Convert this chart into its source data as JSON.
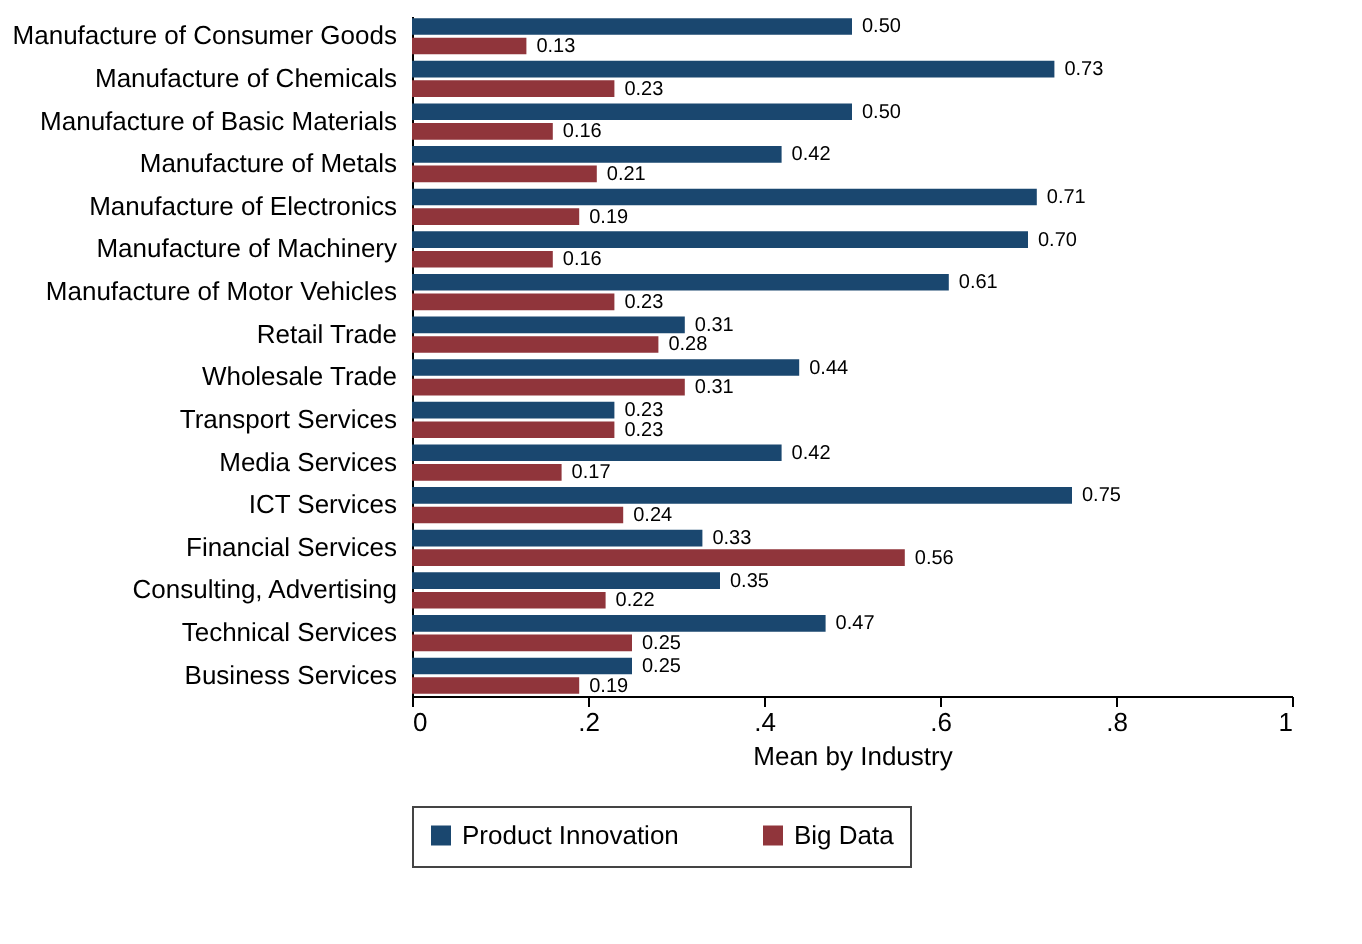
{
  "chart_data": {
    "type": "bar",
    "orientation": "horizontal",
    "xlabel": "Mean by Industry",
    "categories": [
      "Manufacture of Consumer Goods",
      "Manufacture of Chemicals",
      "Manufacture of Basic Materials",
      "Manufacture of Metals",
      "Manufacture of Electronics",
      "Manufacture of Machinery",
      "Manufacture of Motor Vehicles",
      "Retail Trade",
      "Wholesale Trade",
      "Transport Services",
      "Media Services",
      "ICT Services",
      "Financial Services",
      "Consulting, Advertising",
      "Technical Services",
      "Business Services"
    ],
    "series": [
      {
        "name": "Product Innovation",
        "color": "#1a476f",
        "values": [
          0.5,
          0.73,
          0.5,
          0.42,
          0.71,
          0.7,
          0.61,
          0.31,
          0.44,
          0.23,
          0.42,
          0.75,
          0.33,
          0.35,
          0.47,
          0.25
        ],
        "value_labels": [
          "0.50",
          "0.73",
          "0.50",
          "0.42",
          "0.71",
          "0.70",
          "0.61",
          "0.31",
          "0.44",
          "0.23",
          "0.42",
          "0.75",
          "0.33",
          "0.35",
          "0.47",
          "0.25"
        ]
      },
      {
        "name": "Big Data",
        "color": "#90353b",
        "values": [
          0.13,
          0.23,
          0.16,
          0.21,
          0.19,
          0.16,
          0.23,
          0.28,
          0.31,
          0.23,
          0.17,
          0.24,
          0.56,
          0.22,
          0.25,
          0.19
        ],
        "value_labels": [
          "0.13",
          "0.23",
          "0.16",
          "0.21",
          "0.19",
          "0.16",
          "0.23",
          "0.28",
          "0.31",
          "0.23",
          "0.17",
          "0.24",
          "0.56",
          "0.22",
          "0.25",
          "0.19"
        ]
      }
    ],
    "xlim": [
      0,
      1
    ],
    "xticks": [
      0,
      {
        "value": 0.2,
        "label": ".2"
      },
      {
        "value": 0.4,
        "label": ".4"
      },
      {
        "value": 0.6,
        "label": ".6"
      },
      {
        "value": 0.8,
        "label": ".8"
      },
      1
    ],
    "grid": false,
    "legend": "bottom"
  }
}
